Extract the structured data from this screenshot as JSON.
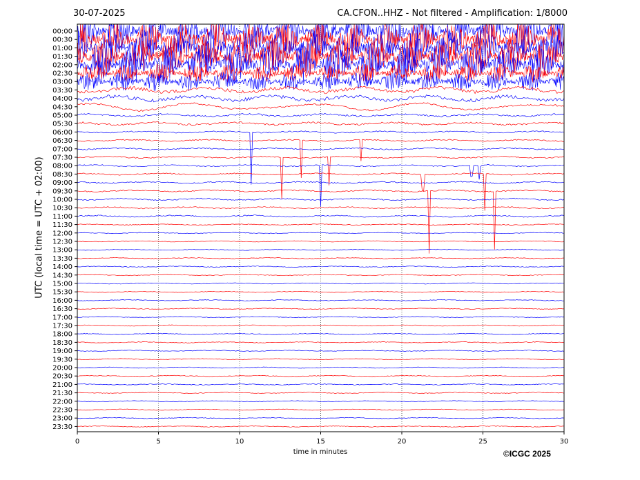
{
  "header": {
    "date": "30-07-2025",
    "title": "CA.CFON..HHZ - Not filtered - Amplification: 1/8000"
  },
  "footer": {
    "copyright": "©ICGC 2025"
  },
  "chart_data": {
    "type": "line",
    "title": "CA.CFON..HHZ - Not filtered - Amplification: 1/8000",
    "xlabel": "time in minutes",
    "ylabel": "UTC (local time = UTC + 02:00)",
    "xlim": [
      0,
      30
    ],
    "xticks": [
      0,
      5,
      10,
      15,
      20,
      25,
      30
    ],
    "yticks": [
      "00:00",
      "00:30",
      "01:00",
      "01:30",
      "02:00",
      "02:30",
      "03:00",
      "03:30",
      "04:00",
      "04:30",
      "05:00",
      "05:30",
      "06:00",
      "06:30",
      "07:00",
      "07:30",
      "08:00",
      "08:30",
      "09:00",
      "09:30",
      "10:00",
      "10:30",
      "11:00",
      "11:30",
      "12:00",
      "12:30",
      "13:00",
      "13:30",
      "14:00",
      "14:30",
      "15:00",
      "15:30",
      "16:00",
      "16:30",
      "17:00",
      "17:30",
      "18:00",
      "18:30",
      "19:00",
      "19:30",
      "20:00",
      "20:30",
      "21:00",
      "21:30",
      "22:00",
      "22:30",
      "23:00",
      "23:30"
    ],
    "grid": "vertical dotted lines at each x tick",
    "series_colors": [
      "#0000ff",
      "#ff0000"
    ],
    "trace_colors_pattern": "traces alternate blue and red, one trace per 30-minute row"
  }
}
